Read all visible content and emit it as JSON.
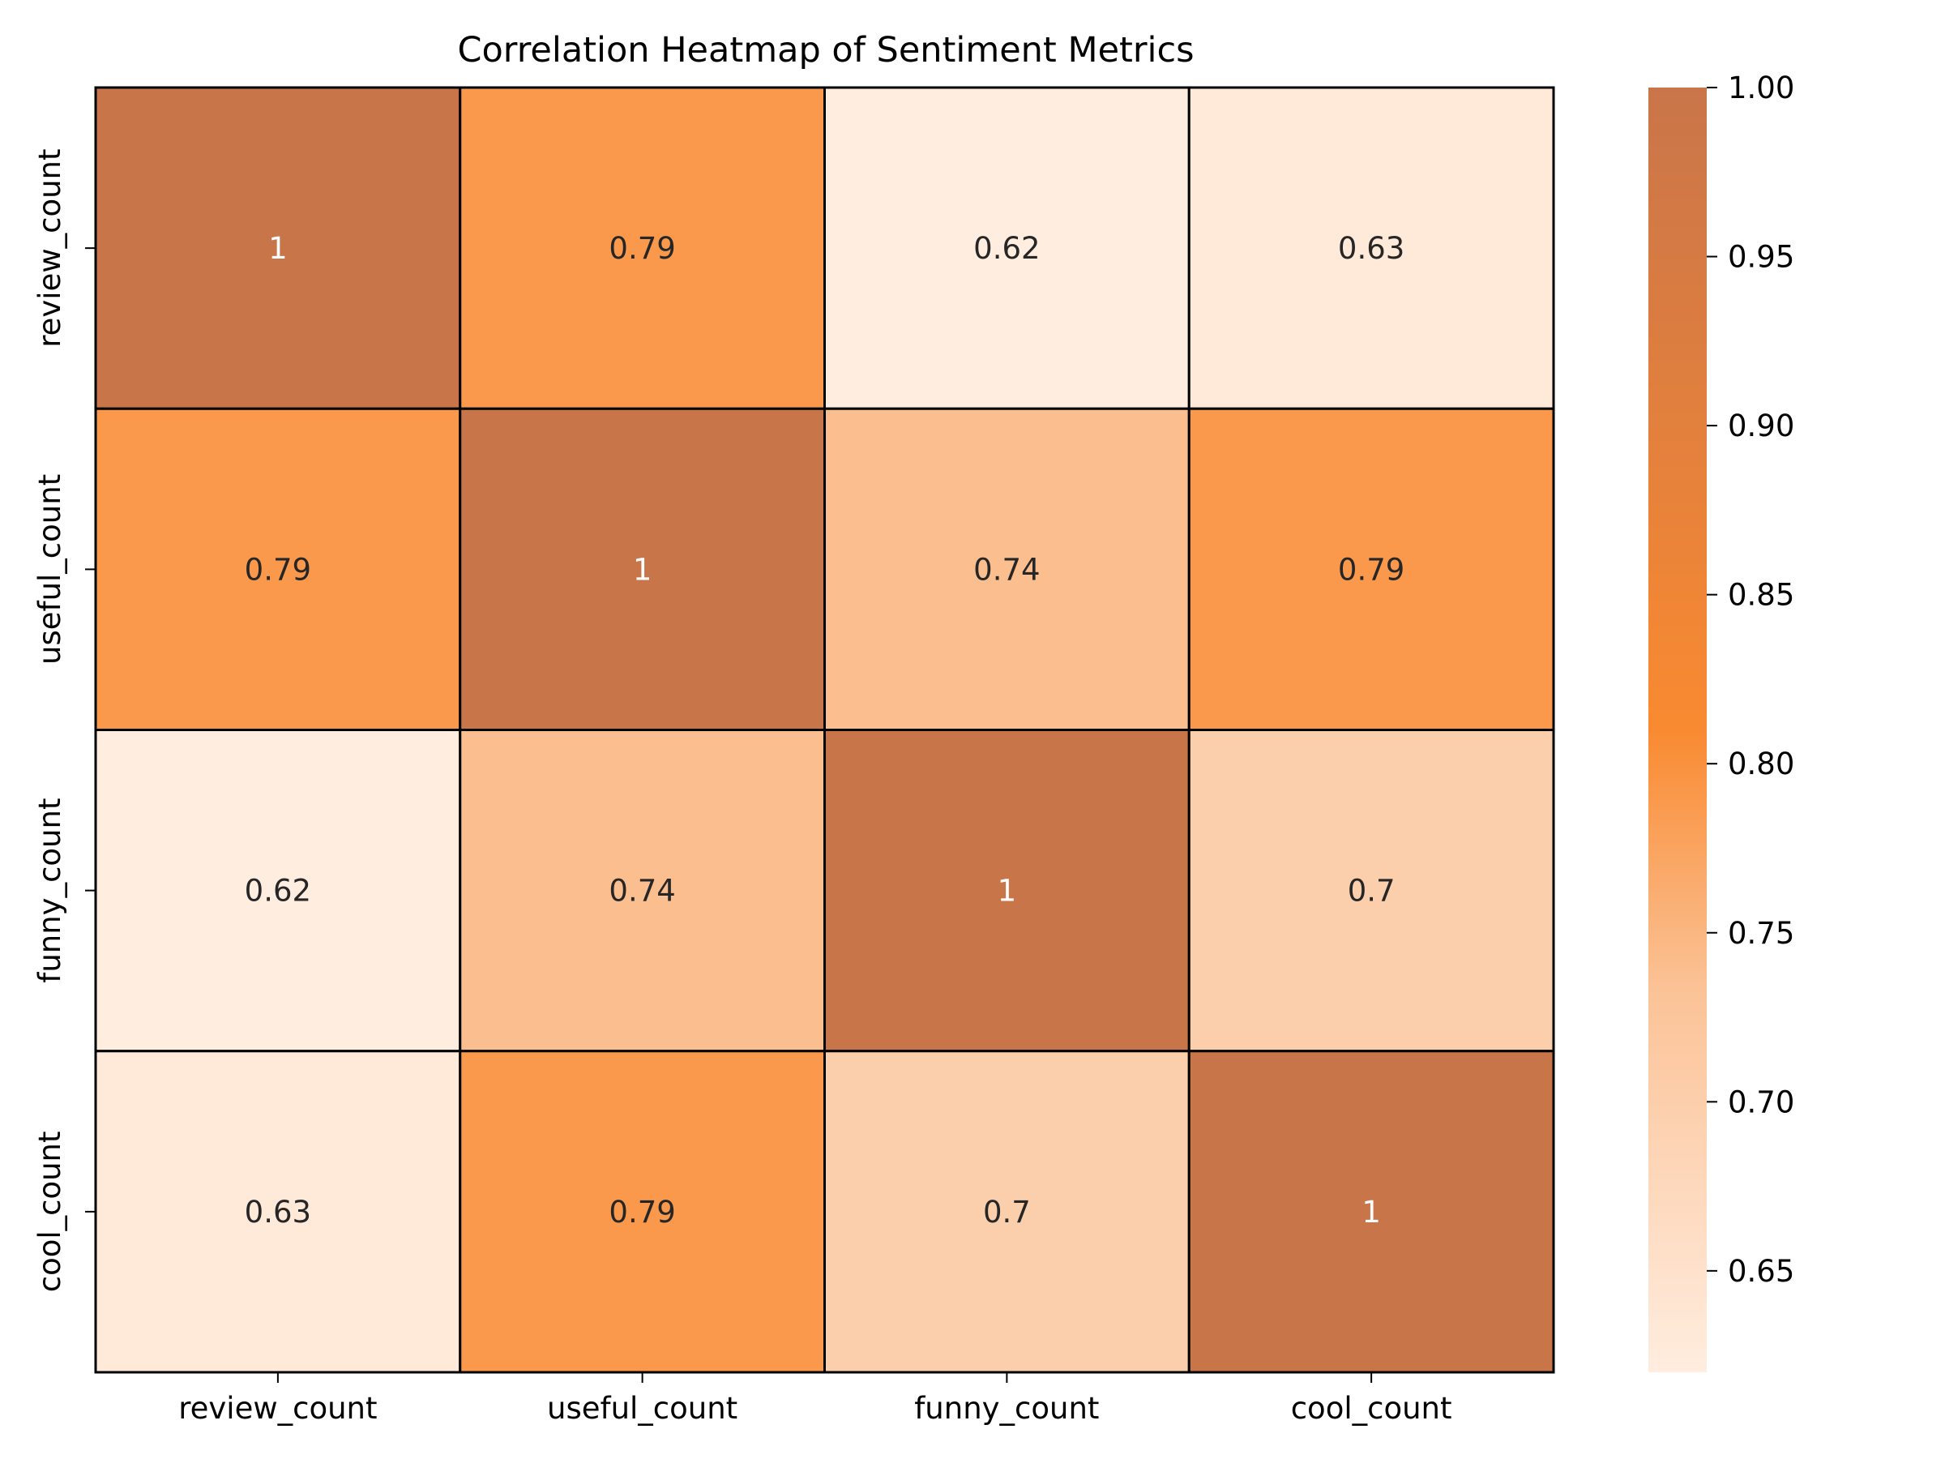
{
  "chart_data": {
    "type": "heatmap",
    "title": "Correlation Heatmap of Sentiment Metrics",
    "xlabel": "",
    "ylabel": "",
    "x_categories": [
      "review_count",
      "useful_count",
      "funny_count",
      "cool_count"
    ],
    "y_categories": [
      "review_count",
      "useful_count",
      "funny_count",
      "cool_count"
    ],
    "values": [
      [
        1.0,
        0.79,
        0.62,
        0.63
      ],
      [
        0.79,
        1.0,
        0.74,
        0.79
      ],
      [
        0.62,
        0.74,
        1.0,
        0.7
      ],
      [
        0.63,
        0.79,
        0.7,
        1.0
      ]
    ],
    "cell_labels": [
      [
        "1",
        "0.79",
        "0.62",
        "0.63"
      ],
      [
        "0.79",
        "1",
        "0.74",
        "0.79"
      ],
      [
        "0.62",
        "0.74",
        "1",
        "0.7"
      ],
      [
        "0.63",
        "0.79",
        "0.7",
        "1"
      ]
    ],
    "colorbar": {
      "min": 0.62,
      "max": 1.0,
      "ticks": [
        0.65,
        0.7,
        0.75,
        0.8,
        0.85,
        0.9,
        0.95,
        1.0
      ],
      "tick_labels": [
        "0.65",
        "0.70",
        "0.75",
        "0.80",
        "0.85",
        "0.90",
        "0.95",
        "1.00"
      ],
      "placement": "right"
    },
    "colors": {
      "low": "#ffeddf",
      "mid_light": "#fbc296",
      "mid": "#f98a31",
      "high": "#c9754a",
      "cell_border": "#000000",
      "label_dark": "#262626",
      "label_light": "#ffffff"
    }
  }
}
